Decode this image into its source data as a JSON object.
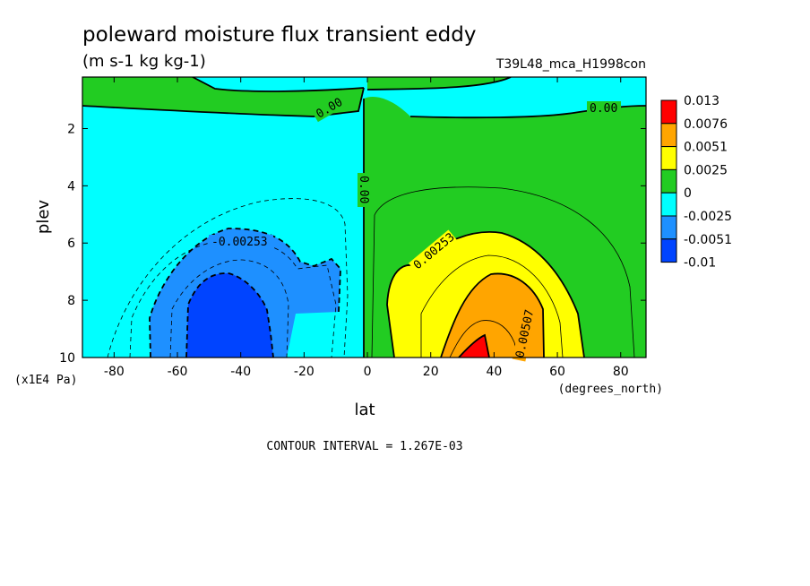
{
  "chart_data": {
    "type": "heatmap",
    "title": "poleward moisture flux transient eddy",
    "subtitle": "(m s-1 kg kg-1)",
    "run_label": "T39L48_mca_H1998con",
    "xlabel": "lat",
    "xunits": "(degrees_north)",
    "ylabel": "plev",
    "yunits": "(x1E4 Pa)",
    "xlim": [
      -90,
      88
    ],
    "ylim": [
      10,
      0.2
    ],
    "x_ticks": [
      "-80",
      "-60",
      "-40",
      "-20",
      "0",
      "20",
      "40",
      "60",
      "80"
    ],
    "x_tick_values": [
      -80,
      -60,
      -40,
      -20,
      0,
      20,
      40,
      60,
      80
    ],
    "y_ticks": [
      "2",
      "4",
      "6",
      "8",
      "10"
    ],
    "y_tick_values": [
      2,
      4,
      6,
      8,
      10
    ],
    "contour_interval_text": "CONTOUR INTERVAL = 1.267E-03",
    "contour_labels": [
      "0.00",
      "0.00",
      "0.00",
      "-0.00253",
      "0.00253",
      "0.00507"
    ],
    "colorbar": {
      "labels": [
        "0.013",
        "0.0076",
        "0.0051",
        "0.0025",
        "0",
        "-0.0025",
        "-0.0051",
        "-0.01"
      ],
      "colors": [
        "#ff0000",
        "#ffa500",
        "#ffff00",
        "#22cc22",
        "#00ffff",
        "#1e90ff",
        "#0044ff"
      ]
    },
    "colors": {
      "deep_red": "#ff0000",
      "orange": "#ffa500",
      "yellow": "#ffff00",
      "green": "#22cc22",
      "cyan": "#00ffff",
      "blue": "#1e90ff",
      "deep_blue": "#0044ff"
    }
  }
}
